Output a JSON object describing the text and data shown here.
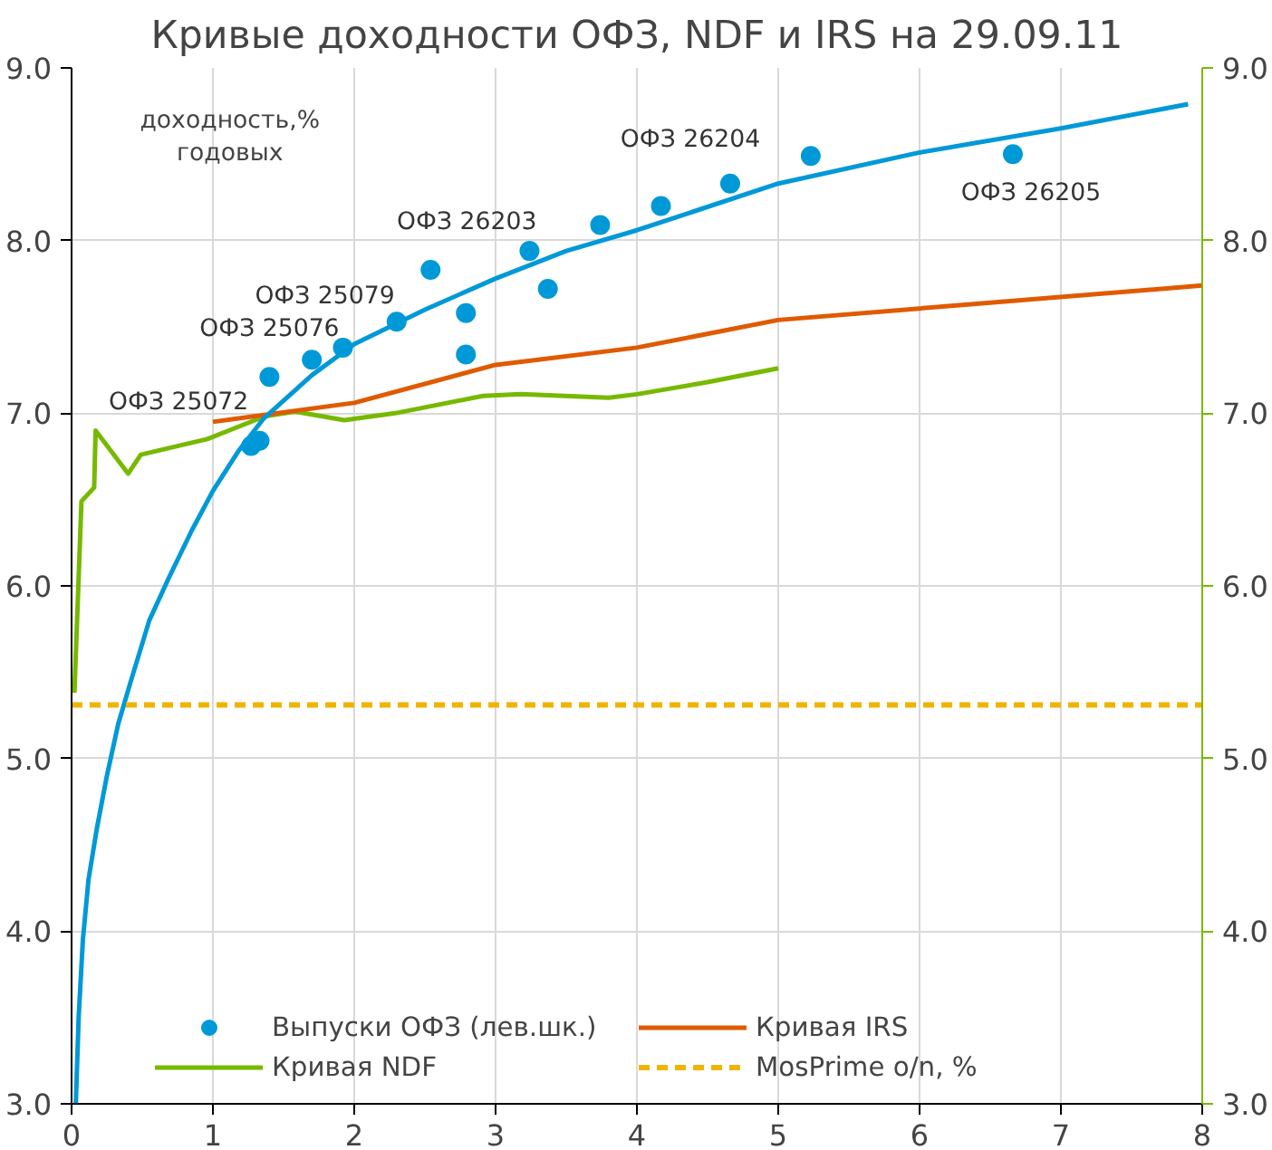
{
  "chart_data": {
    "type": "line",
    "title": "Кривые доходности ОФЗ, NDF и IRS на 29.09.11",
    "ylabel": "доходность,%\nгодовых",
    "xlim": [
      0,
      8
    ],
    "xticks": [
      0,
      1,
      2,
      3,
      4,
      5,
      6,
      7,
      8
    ],
    "ylim": [
      3,
      9
    ],
    "yticks": [
      {
        "value": 3,
        "label": "3.0"
      },
      {
        "value": 4,
        "label": "4.0"
      },
      {
        "value": 5,
        "label": "5.0"
      },
      {
        "value": 6,
        "label": "6.0"
      },
      {
        "value": 7,
        "label": "7.0"
      },
      {
        "value": 8,
        "label": "8.0"
      },
      {
        "value": 9,
        "label": "9.0"
      }
    ],
    "y2lim": [
      3,
      9
    ],
    "y2ticks": [
      {
        "value": 3,
        "label": "3.0"
      },
      {
        "value": 4,
        "label": "4.0"
      },
      {
        "value": 5,
        "label": "5.0"
      },
      {
        "value": 6,
        "label": "6.0"
      },
      {
        "value": 7,
        "label": "7.0"
      },
      {
        "value": 8,
        "label": "8.0"
      },
      {
        "value": 9,
        "label": "9.0"
      }
    ],
    "grid": true,
    "legend": "bottom",
    "series": [
      {
        "name": "Выпуски ОФЗ (лев.шк.)",
        "type": "scatter",
        "marker": "circle",
        "color": "#0099d8",
        "x": [
          1.27,
          1.33,
          1.4,
          1.7,
          1.92,
          2.3,
          2.54,
          2.79,
          2.79,
          3.24,
          3.37,
          3.74,
          4.17,
          4.66,
          5.23,
          6.66
        ],
        "values": [
          6.81,
          6.84,
          7.21,
          7.31,
          7.38,
          7.53,
          7.83,
          7.58,
          7.34,
          7.94,
          7.72,
          8.09,
          8.2,
          8.33,
          8.49,
          8.5
        ]
      },
      {
        "name": "Кривая NDF",
        "color": "#77b900",
        "x": [
          0.02,
          0.07,
          0.16,
          0.17,
          0.4,
          0.49,
          0.96,
          1.36,
          1.58,
          1.93,
          2.29,
          2.91,
          3.18,
          3.8,
          4.0,
          4.5,
          5.0
        ],
        "values": [
          5.38,
          6.49,
          6.57,
          6.9,
          6.65,
          6.76,
          6.85,
          6.98,
          7.01,
          6.96,
          7.0,
          7.1,
          7.11,
          7.09,
          7.11,
          7.18,
          7.26
        ]
      },
      {
        "name": "Кривая IRS",
        "color": "#e05a00",
        "x": [
          1,
          2,
          3,
          4,
          5,
          8
        ],
        "values": [
          6.95,
          7.06,
          7.28,
          7.38,
          7.54,
          7.74
        ]
      },
      {
        "color": "#0099d8",
        "x": [
          0.03,
          0.05,
          0.08,
          0.12,
          0.18,
          0.25,
          0.33,
          0.42,
          0.55,
          0.69,
          0.85,
          1.0,
          1.18,
          1.36,
          1.7,
          2,
          2.5,
          3,
          3.5,
          4,
          5,
          6,
          7,
          7.9
        ],
        "values": [
          3.0,
          3.5,
          3.95,
          4.3,
          4.6,
          4.9,
          5.2,
          5.45,
          5.8,
          6.05,
          6.32,
          6.55,
          6.78,
          6.97,
          7.22,
          7.4,
          7.6,
          7.78,
          7.94,
          8.06,
          8.33,
          8.51,
          8.65,
          8.79
        ]
      }
    ],
    "ref_lines": [
      {
        "axis": "y",
        "value": 5.31,
        "label": "MosPrime o/n, %",
        "color": "#f0b400",
        "line_style": "dashed"
      }
    ],
    "annotations": [
      {
        "text": "ОФЗ 25072",
        "x": 1.27,
        "y": 6.81
      },
      {
        "text": "ОФЗ 25076",
        "x": 1.4,
        "y": 7.21
      },
      {
        "text": "ОФЗ 25079",
        "x": 1.92,
        "y": 7.38
      },
      {
        "text": "ОФЗ 26203",
        "x": 2.54,
        "y": 7.83
      },
      {
        "text": "ОФЗ 26204",
        "x": 4.66,
        "y": 8.33
      },
      {
        "text": "ОФЗ 26205",
        "x": 6.66,
        "y": 8.5
      }
    ]
  }
}
